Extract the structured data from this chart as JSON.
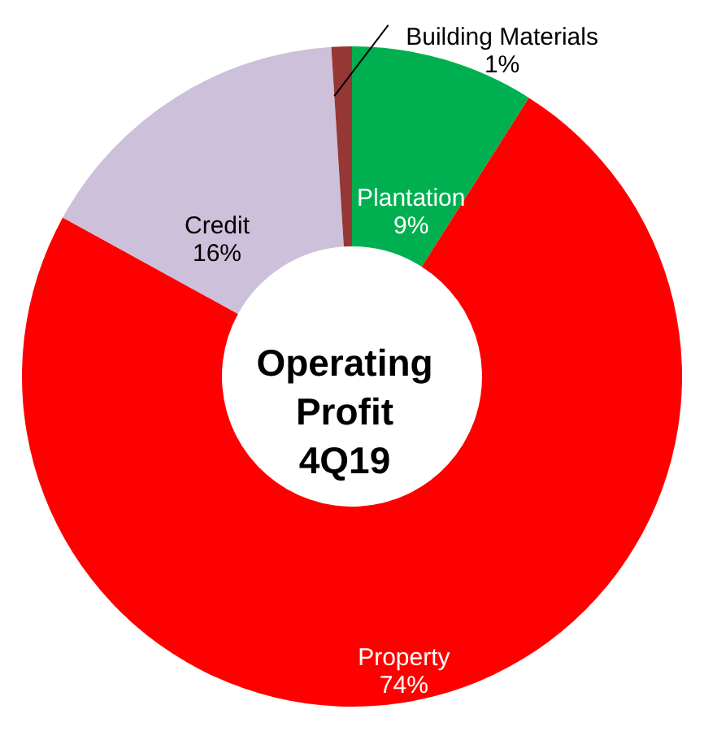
{
  "chart_data": {
    "type": "donut",
    "title": "Operating Profit 4Q19",
    "categories": [
      "Plantation",
      "Property",
      "Credit",
      "Building Materials"
    ],
    "values": [
      9,
      74,
      16,
      1
    ],
    "value_labels": [
      "9%",
      "74%",
      "16%",
      "1%"
    ],
    "colors": [
      "#00b050",
      "#ff0000",
      "#ccc0da",
      "#953735"
    ]
  }
}
